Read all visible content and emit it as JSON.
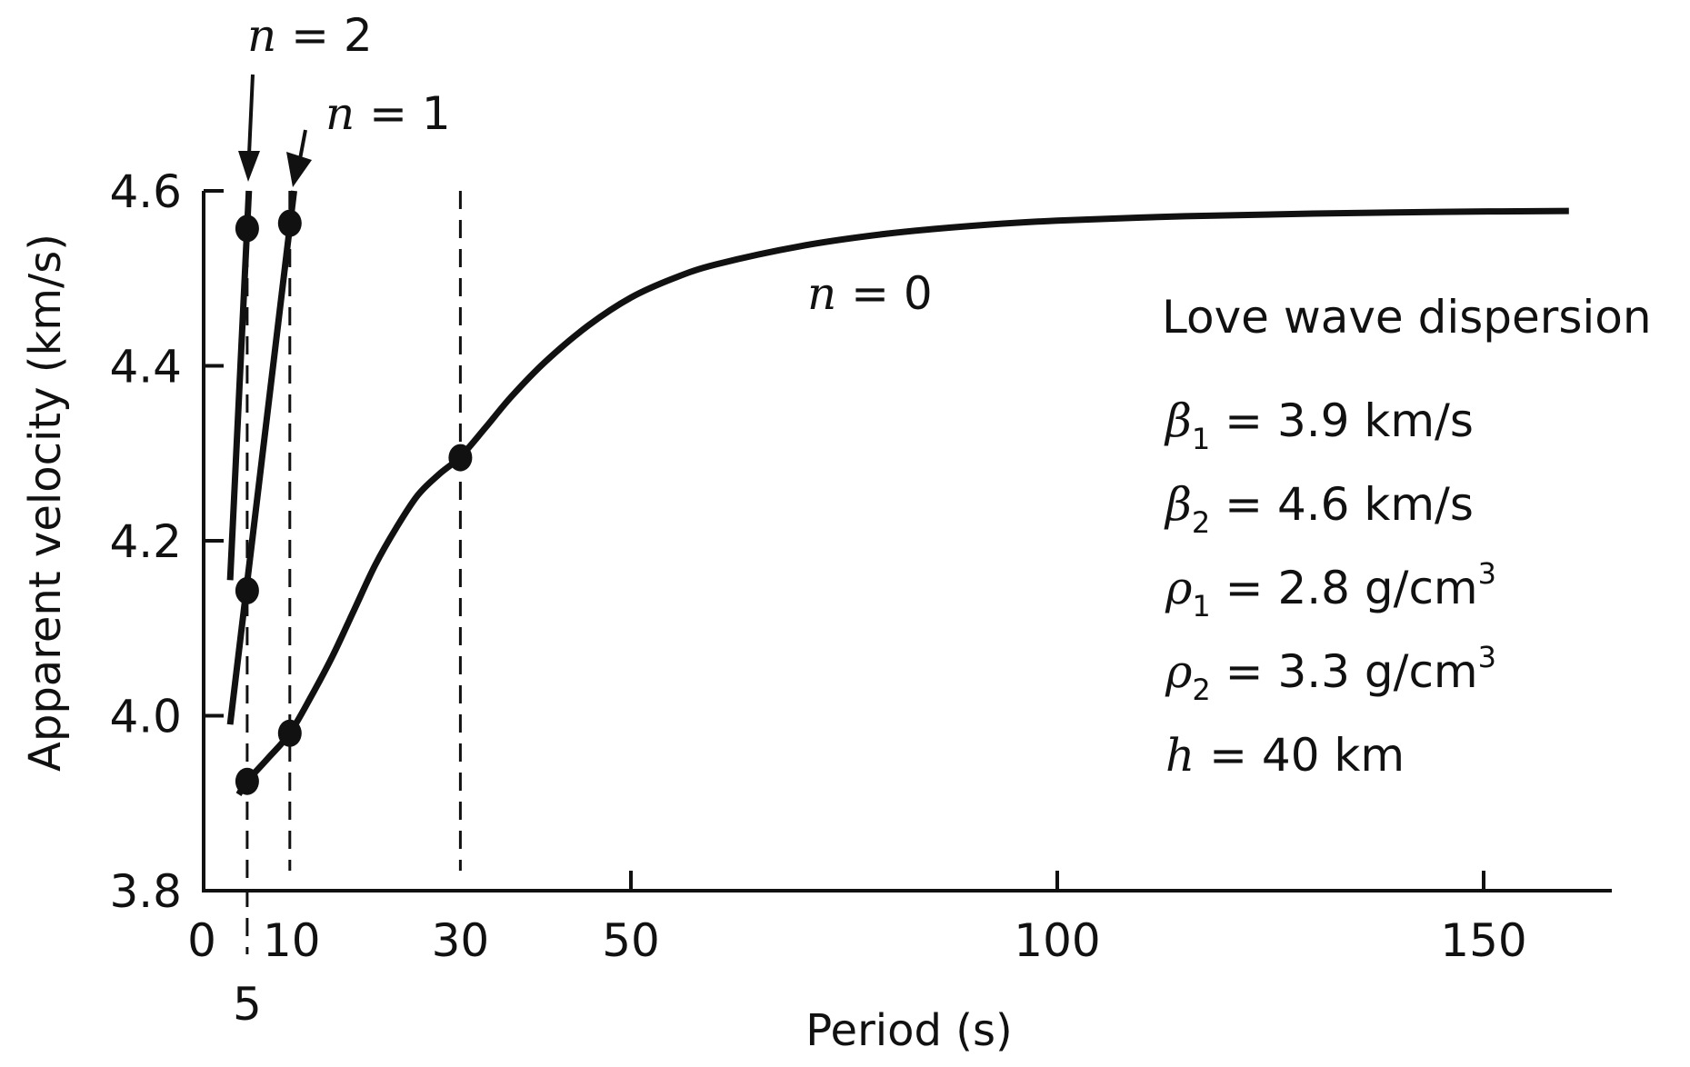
{
  "chart_data": {
    "type": "line",
    "title": "Love wave dispersion",
    "xlabel": "Period (s)",
    "ylabel": "Apparent velocity (km/s)",
    "xlim": [
      0,
      165
    ],
    "ylim": [
      3.8,
      4.6
    ],
    "x_ticks": [
      {
        "value": 0,
        "label": "0"
      },
      {
        "value": 5,
        "label": "5"
      },
      {
        "value": 10,
        "label": "10"
      },
      {
        "value": 30,
        "label": "30"
      },
      {
        "value": 50,
        "label": "50"
      },
      {
        "value": 100,
        "label": "100"
      },
      {
        "value": 150,
        "label": "150"
      }
    ],
    "y_ticks": [
      {
        "value": 3.8,
        "label": "3.8"
      },
      {
        "value": 4.0,
        "label": "4.0"
      },
      {
        "value": 4.2,
        "label": "4.2"
      },
      {
        "value": 4.4,
        "label": "4.4"
      },
      {
        "value": 4.6,
        "label": "4.6"
      }
    ],
    "grid": false,
    "reference_lines_x": [
      5,
      10,
      30
    ],
    "series": [
      {
        "name": "n = 0",
        "label_prefix": "n",
        "label_suffix": " = 0",
        "x": [
          4,
          5,
          7.5,
          10,
          12.5,
          15,
          17.5,
          20,
          22.5,
          25,
          27.5,
          30,
          33,
          36,
          40,
          45,
          50,
          55,
          60,
          70,
          80,
          90,
          100,
          115,
          130,
          145,
          160
        ],
        "y": [
          3.91,
          3.925,
          3.952,
          3.98,
          4.022,
          4.068,
          4.12,
          4.172,
          4.215,
          4.252,
          4.276,
          4.296,
          4.33,
          4.365,
          4.405,
          4.446,
          4.478,
          4.5,
          4.516,
          4.537,
          4.551,
          4.56,
          4.566,
          4.571,
          4.574,
          4.576,
          4.577
        ],
        "markers": [
          {
            "x": 5,
            "y": 3.925
          },
          {
            "x": 10,
            "y": 3.98
          },
          {
            "x": 30,
            "y": 4.295
          }
        ]
      },
      {
        "name": "n = 1",
        "label_prefix": "n",
        "label_suffix": " = 1",
        "x": [
          3.0,
          10.5
        ],
        "y": [
          3.99,
          4.6
        ],
        "markers": [
          {
            "x": 5,
            "y": 4.143
          },
          {
            "x": 10,
            "y": 4.563
          }
        ]
      },
      {
        "name": "n = 2",
        "label_prefix": "n",
        "label_suffix": " = 2",
        "x": [
          3.0,
          5.2
        ],
        "y": [
          4.155,
          4.6
        ],
        "markers": [
          {
            "x": 5,
            "y": 4.557
          }
        ]
      }
    ],
    "parameters": [
      {
        "symbol": "β",
        "subscript": "1",
        "text": " = 3.9 km/s",
        "superscript": ""
      },
      {
        "symbol": "β",
        "subscript": "2",
        "text": " = 4.6 km/s",
        "superscript": ""
      },
      {
        "symbol": "ρ",
        "subscript": "1",
        "text": " = 2.8 g/cm",
        "superscript": "3"
      },
      {
        "symbol": "ρ",
        "subscript": "2",
        "text": " = 3.3 g/cm",
        "superscript": "3"
      },
      {
        "symbol": "h",
        "subscript": "",
        "text": " = 40 km",
        "superscript": ""
      }
    ]
  }
}
